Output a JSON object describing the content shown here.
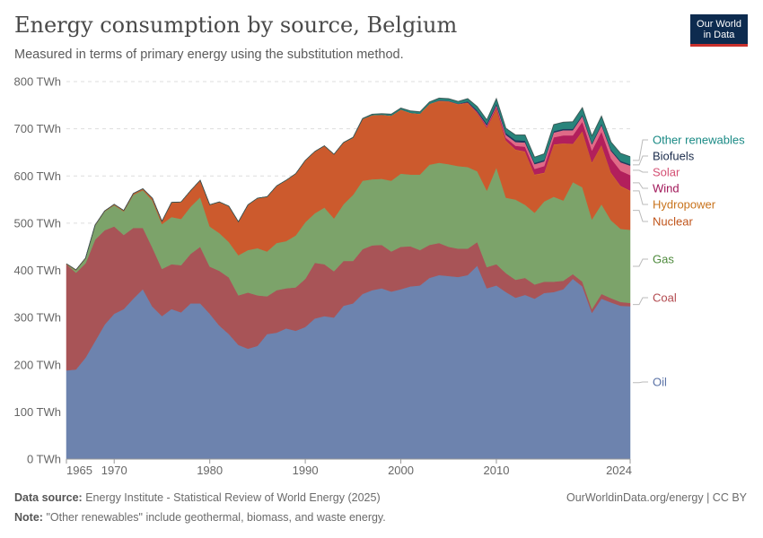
{
  "header": {
    "title": "Energy consumption by source, Belgium",
    "subtitle": "Measured in terms of primary energy using the substitution method.",
    "logo_line1": "Our World",
    "logo_line2": "in Data"
  },
  "footer": {
    "source_label": "Data source:",
    "source_text": "Energy Institute - Statistical Review of World Energy (2025)",
    "note_label": "Note:",
    "note_text": "\"Other renewables\" include geothermal, biomass, and waste energy.",
    "credit": "OurWorldinData.org/energy | CC BY"
  },
  "chart_data": {
    "type": "area",
    "stacked": true,
    "title": "Energy consumption by source, Belgium",
    "ylabel": "TWh",
    "ylim": [
      0,
      800
    ],
    "yticks": [
      0,
      100,
      200,
      300,
      400,
      500,
      600,
      700,
      800
    ],
    "ytick_labels": [
      "0 TWh",
      "100 TWh",
      "200 TWh",
      "300 TWh",
      "400 TWh",
      "500 TWh",
      "600 TWh",
      "700 TWh",
      "800 TWh"
    ],
    "xlim": [
      1965,
      2024
    ],
    "xticks": [
      1965,
      1970,
      1980,
      1990,
      2000,
      2010,
      2024
    ],
    "x": [
      1965,
      1966,
      1967,
      1968,
      1969,
      1970,
      1971,
      1972,
      1973,
      1974,
      1975,
      1976,
      1977,
      1978,
      1979,
      1980,
      1981,
      1982,
      1983,
      1984,
      1985,
      1986,
      1987,
      1988,
      1989,
      1990,
      1991,
      1992,
      1993,
      1994,
      1995,
      1996,
      1997,
      1998,
      1999,
      2000,
      2001,
      2002,
      2003,
      2004,
      2005,
      2006,
      2007,
      2008,
      2009,
      2010,
      2011,
      2012,
      2013,
      2014,
      2015,
      2016,
      2017,
      2018,
      2019,
      2020,
      2021,
      2022,
      2023,
      2024
    ],
    "series": [
      {
        "name": "Oil",
        "color": "#6d83ae",
        "label_color": "#5a72a6",
        "values": [
          188,
          190,
          215,
          250,
          285,
          308,
          318,
          340,
          360,
          323,
          303,
          318,
          311,
          330,
          330,
          308,
          283,
          265,
          242,
          234,
          240,
          265,
          268,
          277,
          272,
          280,
          298,
          303,
          300,
          325,
          330,
          350,
          358,
          362,
          355,
          360,
          366,
          368,
          384,
          390,
          388,
          386,
          390,
          410,
          362,
          368,
          354,
          342,
          348,
          340,
          352,
          354,
          360,
          382,
          366,
          310,
          340,
          332,
          325,
          324
        ]
      },
      {
        "name": "Coal",
        "color": "#a85457",
        "label_color": "#b24a4f",
        "values": [
          225,
          205,
          200,
          215,
          200,
          185,
          157,
          150,
          130,
          125,
          100,
          95,
          100,
          105,
          120,
          100,
          116,
          120,
          105,
          119,
          107,
          80,
          90,
          85,
          92,
          102,
          118,
          110,
          98,
          95,
          90,
          95,
          95,
          92,
          85,
          90,
          85,
          75,
          70,
          68,
          62,
          60,
          56,
          50,
          45,
          45,
          40,
          38,
          36,
          30,
          24,
          22,
          18,
          10,
          10,
          8,
          10,
          9,
          8,
          7
        ]
      },
      {
        "name": "Gas",
        "color": "#7ca36a",
        "label_color": "#4e8a3c",
        "values": [
          0,
          5,
          10,
          30,
          40,
          45,
          50,
          70,
          80,
          100,
          95,
          100,
          98,
          100,
          105,
          85,
          80,
          75,
          85,
          90,
          100,
          95,
          100,
          100,
          110,
          120,
          105,
          120,
          112,
          120,
          140,
          145,
          140,
          140,
          150,
          155,
          152,
          160,
          170,
          170,
          175,
          175,
          173,
          150,
          162,
          205,
          160,
          170,
          155,
          152,
          170,
          180,
          170,
          195,
          200,
          190,
          190,
          165,
          155,
          155
        ]
      },
      {
        "name": "Nuclear",
        "color": "#cc5a2d",
        "label_color": "#c0541a",
        "values": [
          0,
          0,
          0,
          0,
          0,
          1,
          1,
          2,
          2,
          4,
          5,
          30,
          35,
          33,
          35,
          45,
          65,
          75,
          70,
          95,
          105,
          115,
          120,
          128,
          130,
          130,
          130,
          130,
          135,
          130,
          120,
          130,
          135,
          135,
          137,
          135,
          130,
          128,
          128,
          130,
          132,
          130,
          135,
          122,
          132,
          124,
          120,
          105,
          112,
          80,
          60,
          110,
          120,
          80,
          118,
          120,
          125,
          100,
          90,
          82
        ]
      },
      {
        "name": "Hydropower",
        "color": "#d87c2a",
        "label_color": "#c8731c",
        "values": [
          1,
          1,
          1,
          1,
          1,
          1,
          1,
          1,
          1,
          1,
          1,
          1,
          1,
          1,
          1,
          1,
          1,
          1,
          1,
          1,
          1,
          1,
          1,
          1,
          1,
          1,
          1,
          1,
          1,
          1,
          1,
          1,
          1,
          1,
          1,
          1,
          1,
          1,
          1,
          1,
          1,
          1,
          1,
          1,
          1,
          1,
          1,
          1,
          1,
          1,
          1,
          1,
          1,
          1,
          1,
          1,
          1,
          1,
          1,
          1
        ]
      },
      {
        "name": "Wind",
        "color": "#b21f5c",
        "label_color": "#a01658",
        "values": [
          0,
          0,
          0,
          0,
          0,
          0,
          0,
          0,
          0,
          0,
          0,
          0,
          0,
          0,
          0,
          0,
          0,
          0,
          0,
          0,
          0,
          0,
          0,
          0,
          0,
          0,
          0,
          0,
          0,
          0,
          0,
          0,
          0,
          0,
          0,
          0,
          0,
          0,
          0,
          1,
          1,
          1,
          1,
          2,
          3,
          4,
          6,
          8,
          10,
          12,
          14,
          15,
          17,
          18,
          20,
          25,
          28,
          30,
          32,
          33
        ]
      },
      {
        "name": "Solar",
        "color": "#e06a87",
        "label_color": "#d44f73",
        "values": [
          0,
          0,
          0,
          0,
          0,
          0,
          0,
          0,
          0,
          0,
          0,
          0,
          0,
          0,
          0,
          0,
          0,
          0,
          0,
          0,
          0,
          0,
          0,
          0,
          0,
          0,
          0,
          0,
          0,
          0,
          0,
          0,
          0,
          0,
          0,
          0,
          0,
          0,
          0,
          0,
          0,
          0,
          0,
          1,
          2,
          3,
          6,
          8,
          9,
          10,
          10,
          10,
          11,
          11,
          12,
          13,
          14,
          16,
          18,
          20
        ]
      },
      {
        "name": "Biofuels",
        "color": "#1f3a5f",
        "label_color": "#1b2c4b",
        "values": [
          0,
          0,
          0,
          0,
          0,
          0,
          0,
          0,
          0,
          0,
          0,
          0,
          0,
          0,
          0,
          0,
          0,
          0,
          0,
          0,
          0,
          0,
          0,
          0,
          0,
          0,
          0,
          0,
          0,
          0,
          0,
          0,
          0,
          0,
          0,
          0,
          0,
          0,
          0,
          0,
          0,
          0,
          2,
          3,
          4,
          4,
          4,
          4,
          4,
          3,
          3,
          3,
          3,
          3,
          3,
          3,
          3,
          3,
          3,
          3
        ]
      },
      {
        "name": "Other renewables",
        "color": "#28847b",
        "label_color": "#1a8a85",
        "values": [
          0,
          0,
          0,
          0,
          0,
          0,
          0,
          0,
          0,
          0,
          0,
          0,
          0,
          0,
          0,
          0,
          0,
          0,
          0,
          0,
          0,
          0,
          0,
          0,
          0,
          0,
          0,
          0,
          0,
          0,
          1,
          1,
          2,
          2,
          3,
          3,
          4,
          4,
          4,
          5,
          5,
          5,
          6,
          8,
          8,
          10,
          10,
          11,
          12,
          12,
          13,
          14,
          14,
          15,
          15,
          15,
          16,
          16,
          16,
          16
        ]
      }
    ],
    "legend_order": [
      "Other renewables",
      "Biofuels",
      "Solar",
      "Wind",
      "Hydropower",
      "Nuclear",
      "Gas",
      "Coal",
      "Oil"
    ]
  }
}
